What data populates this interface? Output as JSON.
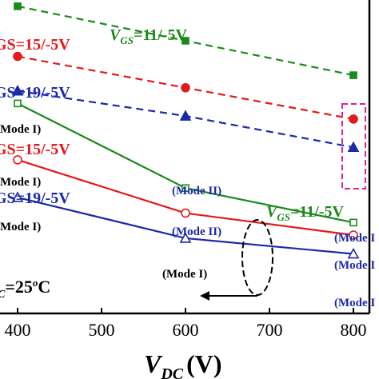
{
  "chart_data": {
    "type": "line",
    "x": [
      400,
      600,
      800
    ],
    "xlim": [
      300,
      830
    ],
    "ylim": [
      0,
      100
    ],
    "xlabel_main": "V",
    "xlabel_sub": "DC",
    "xlabel_unit": "(V)",
    "xticks": [
      "400",
      "500",
      "600",
      "700",
      "800"
    ],
    "series": [
      {
        "color": "#1a8a1a",
        "dash": true,
        "marker": "square-filled",
        "values": [
          98,
          87,
          76
        ]
      },
      {
        "color": "#e31a1a",
        "dash": true,
        "marker": "circle-filled",
        "values": [
          82,
          72,
          62
        ]
      },
      {
        "color": "#1c2aa8",
        "dash": true,
        "marker": "triangle-filled",
        "values": [
          71,
          63,
          53
        ]
      },
      {
        "color": "#1a8a1a",
        "dash": false,
        "marker": "square-open",
        "values": [
          67,
          40,
          29
        ]
      },
      {
        "color": "#e31a1a",
        "dash": false,
        "marker": "circle-open",
        "values": [
          49,
          32,
          25
        ]
      },
      {
        "color": "#1c2aa8",
        "dash": false,
        "marker": "triangle-open",
        "values": [
          37,
          24,
          19
        ]
      }
    ],
    "annotations": {
      "vgs_green_top_pre": "V",
      "vgs_green_top_sub": "GS",
      "vgs_green_top_post": "=11/-5V",
      "vgs_red_top": "GS=15/-5V",
      "vgs_blue_top": "GS=19/-5V",
      "mode1_top": "(Mode I)",
      "vgs_red_bot": "GS=15/-5V",
      "mode1_red": "(Mode I)",
      "vgs_blue_bot": "GS=19/-5V",
      "mode1_blue": "(Mode I)",
      "mode2_green": "(Mode II)",
      "mode2_red": "(Mode II)",
      "mode1_center": "(Mode I)",
      "vgs_green_bot_pre": "V",
      "vgs_green_bot_sub": "GS",
      "vgs_green_bot_post": "=11/-5V",
      "right_mode1": "(Mode I",
      "right_mode2": "(Mode I",
      "right_mode3": "(Mode I",
      "temp_pre": "C",
      "temp_val": "=25",
      "temp_sup": "o",
      "temp_unit": "C"
    }
  }
}
